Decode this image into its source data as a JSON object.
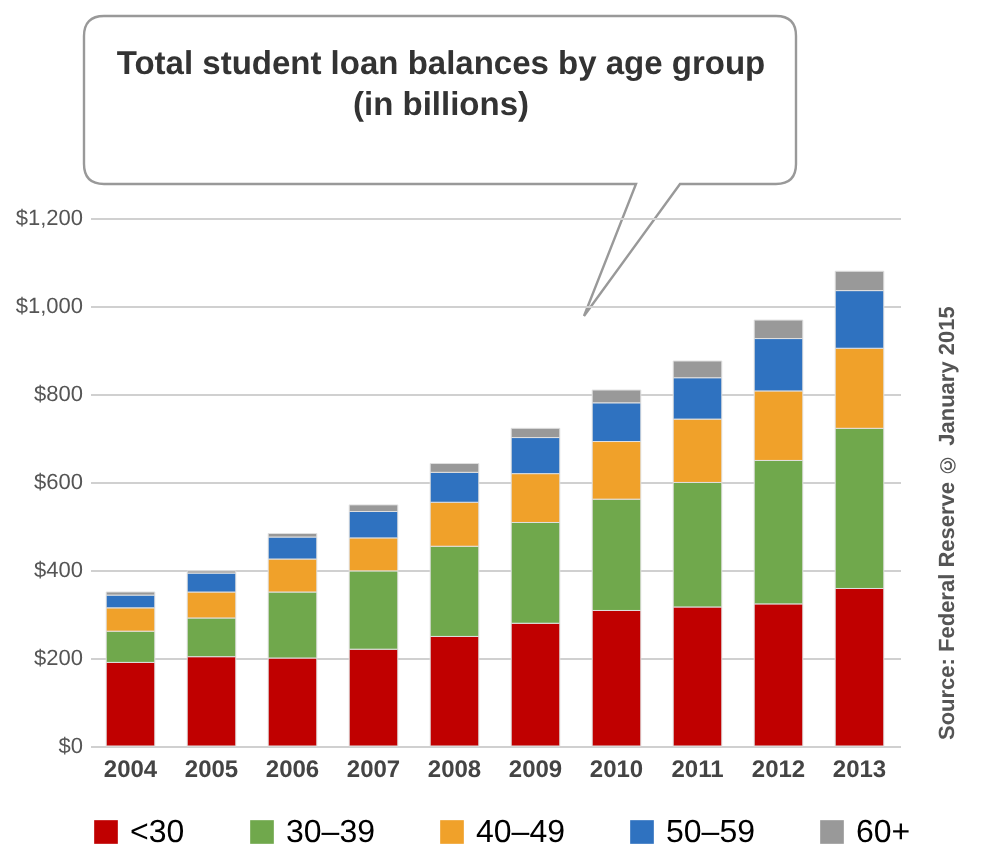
{
  "chart_data": {
    "type": "bar",
    "title": "Total student loan balances by age group",
    "subtitle": "(in billions)",
    "stacked": true,
    "categories": [
      "2004",
      "2005",
      "2006",
      "2007",
      "2008",
      "2009",
      "2010",
      "2011",
      "2012",
      "2013"
    ],
    "series": [
      {
        "name": "<30",
        "color": "#c00000",
        "values": [
          190,
          203,
          200,
          220,
          249,
          279,
          308,
          316,
          323,
          358
        ]
      },
      {
        "name": "30–39",
        "color": "#70a84c",
        "values": [
          71,
          88,
          150,
          178,
          205,
          229,
          253,
          283,
          326,
          364
        ]
      },
      {
        "name": "40–49",
        "color": "#f0a12a",
        "values": [
          53,
          59,
          75,
          75,
          100,
          111,
          131,
          144,
          158,
          182
        ]
      },
      {
        "name": "50–59",
        "color": "#2f72c0",
        "values": [
          29,
          43,
          50,
          60,
          68,
          82,
          88,
          94,
          119,
          131
        ]
      },
      {
        "name": "60+",
        "color": "#999999",
        "values": [
          7,
          5,
          8,
          15,
          20,
          21,
          29,
          38,
          42,
          44
        ]
      }
    ],
    "ylim": [
      0,
      1200
    ],
    "yticks": [
      {
        "value": 0,
        "label": "$0"
      },
      {
        "value": 200,
        "label": "$200"
      },
      {
        "value": 400,
        "label": "$400"
      },
      {
        "value": 600,
        "label": "$600"
      },
      {
        "value": 800,
        "label": "$800"
      },
      {
        "value": 1000,
        "label": "$1,000"
      },
      {
        "value": 1200,
        "label": "$1,200"
      }
    ],
    "grid": "y",
    "legend": "bottom",
    "annotations": [
      "Source: Federal Reserve © January 2015"
    ]
  }
}
